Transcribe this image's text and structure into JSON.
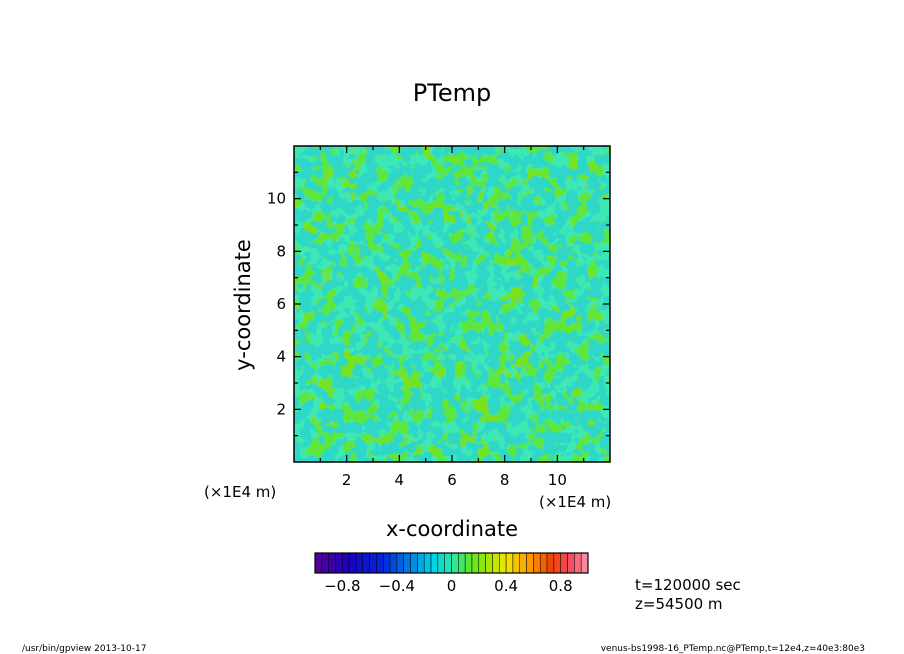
{
  "chart_data": {
    "type": "heatmap",
    "title": "PTemp",
    "xlabel": "x-coordinate",
    "ylabel": "y-coordinate",
    "x_multiplier": "(×1E4 m)",
    "y_multiplier": "(×1E4 m)",
    "xlim": [
      0,
      12
    ],
    "ylim": [
      0,
      12
    ],
    "x_ticks": [
      "2",
      "4",
      "6",
      "8",
      "10"
    ],
    "y_ticks": [
      "2",
      "4",
      "6",
      "8",
      "10"
    ],
    "field_range": [
      -0.2,
      0.1
    ],
    "dominant_value": 0.05,
    "colorbar": {
      "min": -1.0,
      "max": 1.0,
      "levels": 40,
      "tick_labels": [
        "−0.8",
        "−0.4",
        "0",
        "0.4",
        "0.8"
      ],
      "tick_values": [
        -0.8,
        -0.4,
        0,
        0.4,
        0.8
      ]
    }
  },
  "info": {
    "time": "t=120000 sec",
    "height": "z=54500  m"
  },
  "footer": {
    "left": "/usr/bin/gpview   2013-10-17",
    "right": "venus-bs1998-16_PTemp.nc@PTemp,t=12e4,z=40e3:80e3"
  }
}
